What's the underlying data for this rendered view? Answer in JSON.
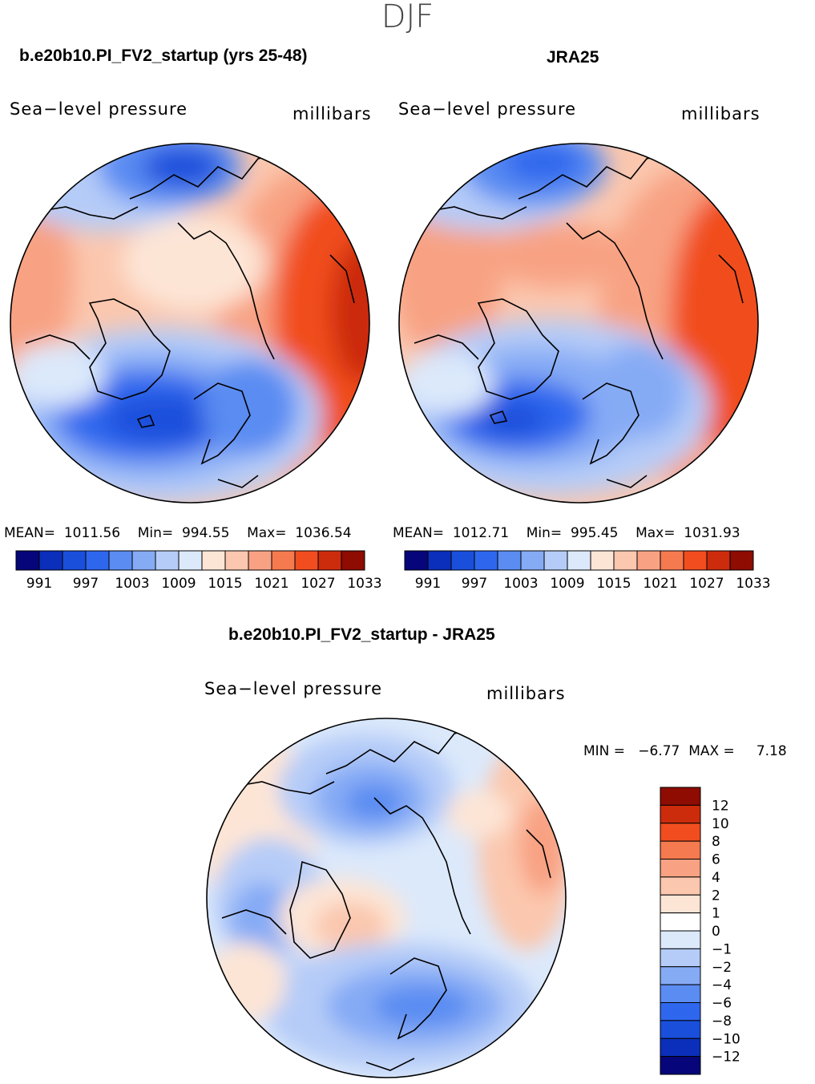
{
  "season": "DJF",
  "panels": [
    {
      "title": "b.e20b10.PI_FV2_startup (yrs 25-48)",
      "variable": "Sea−level pressure",
      "units": "millibars",
      "mean_label": "MEAN=",
      "mean": "1011.56",
      "min_label": "Min=",
      "min": "994.55",
      "max_label": "Max=",
      "max": "1036.54"
    },
    {
      "title": "JRA25",
      "variable": "Sea−level pressure",
      "units": "millibars",
      "mean_label": "MEAN=",
      "mean": "1012.71",
      "min_label": "Min=",
      "min": "995.45",
      "max_label": "Max=",
      "max": "1031.93"
    }
  ],
  "diff_panel": {
    "title": "b.e20b10.PI_FV2_startup - JRA25",
    "variable": "Sea−level pressure",
    "units": "millibars",
    "min_label": "MIN =",
    "min": "−6.77",
    "max_label": "MAX =",
    "max": "7.18"
  },
  "chart_data": [
    {
      "type": "heatmap",
      "title": "b.e20b10.PI_FV2_startup (yrs 25-48)",
      "projection": "north polar stereographic",
      "colorbar": {
        "orientation": "horizontal",
        "levels": [
          991,
          994,
          997,
          1000,
          1003,
          1006,
          1009,
          1012,
          1015,
          1018,
          1021,
          1024,
          1027,
          1030,
          1033
        ],
        "tick_labels": [
          "991",
          "997",
          "1003",
          "1009",
          "1015",
          "1021",
          "1027",
          "1033"
        ],
        "colors": [
          "#06067a",
          "#0b2fbb",
          "#1a4fdc",
          "#2e67ee",
          "#5a8cf2",
          "#86abf5",
          "#b5ccf8",
          "#dce9fb",
          "#fde5d6",
          "#fbc7ae",
          "#f8a283",
          "#f67a4f",
          "#f14d1f",
          "#cc2c0c",
          "#8e0c02"
        ]
      },
      "stats": {
        "mean": 1011.56,
        "min": 994.55,
        "max": 1036.54
      }
    },
    {
      "type": "heatmap",
      "title": "JRA25",
      "projection": "north polar stereographic",
      "colorbar": {
        "orientation": "horizontal",
        "levels": [
          991,
          994,
          997,
          1000,
          1003,
          1006,
          1009,
          1012,
          1015,
          1018,
          1021,
          1024,
          1027,
          1030,
          1033
        ],
        "tick_labels": [
          "991",
          "997",
          "1003",
          "1009",
          "1015",
          "1021",
          "1027",
          "1033"
        ],
        "colors": [
          "#06067a",
          "#0b2fbb",
          "#1a4fdc",
          "#2e67ee",
          "#5a8cf2",
          "#86abf5",
          "#b5ccf8",
          "#dce9fb",
          "#fde5d6",
          "#fbc7ae",
          "#f8a283",
          "#f67a4f",
          "#f14d1f",
          "#cc2c0c",
          "#8e0c02"
        ]
      },
      "stats": {
        "mean": 1012.71,
        "min": 995.45,
        "max": 1031.93
      }
    },
    {
      "type": "heatmap",
      "title": "b.e20b10.PI_FV2_startup - JRA25",
      "projection": "north polar stereographic",
      "colorbar": {
        "orientation": "vertical",
        "tick_labels": [
          "12",
          "10",
          "8",
          "6",
          "4",
          "2",
          "1",
          "0",
          "−1",
          "−2",
          "−4",
          "−6",
          "−8",
          "−10",
          "−12"
        ],
        "colors": [
          "#8e0c02",
          "#cc2c0c",
          "#f14d1f",
          "#f67a4f",
          "#f8a283",
          "#fbc7ae",
          "#fde5d6",
          "#ffffff",
          "#dce9fb",
          "#b5ccf8",
          "#86abf5",
          "#5a8cf2",
          "#2e67ee",
          "#1a4fdc",
          "#0b2fbb",
          "#06067a"
        ]
      },
      "stats": {
        "min": -6.77,
        "max": 7.18
      }
    }
  ]
}
